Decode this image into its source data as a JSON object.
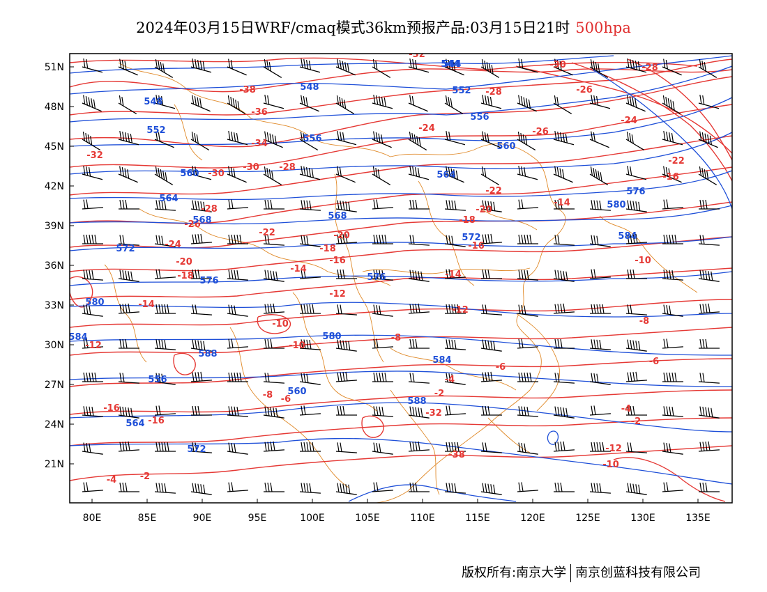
{
  "title": {
    "main": "2024年03月15日WRF/cmaq模式36km预报产品:03月15日21时",
    "level": "500hpa",
    "level_color": "#e53935"
  },
  "axes": {
    "lon_labels": [
      "80E",
      "85E",
      "90E",
      "95E",
      "100E",
      "105E",
      "110E",
      "115E",
      "120E",
      "125E",
      "130E",
      "135E"
    ],
    "lat_labels": [
      "51N",
      "48N",
      "45N",
      "42N",
      "39N",
      "36N",
      "33N",
      "30N",
      "27N",
      "24N",
      "21N"
    ]
  },
  "colors": {
    "temperature": "#e53935",
    "geopotential": "#1e4fd8",
    "border": "#e08a2a",
    "wind": "#000000"
  },
  "contour_labels": {
    "temperature": [
      "-32",
      "-38",
      "-36",
      "-34",
      "-32",
      "-30",
      "-28",
      "-28",
      "-26",
      "-24",
      "-22",
      "-20",
      "-18",
      "-16",
      "-14",
      "-12",
      "-10",
      "-8",
      "-6",
      "-4",
      "-2",
      "-30",
      "-28",
      "-26",
      "-24",
      "-22",
      "-20",
      "-18",
      "-16",
      "-14",
      "-12",
      "-10",
      "-8",
      "-6",
      "-4",
      "-2",
      "-32",
      "-38",
      "-30",
      "-28",
      "-26",
      "-24",
      "-22",
      "-16",
      "-14",
      "-10",
      "-8",
      "-6",
      "-4",
      "-2",
      "-12",
      "-10",
      "-16",
      "-16",
      "-14",
      "-12",
      "-20",
      "-18"
    ],
    "geopotential": [
      "544",
      "548",
      "552",
      "556",
      "560",
      "564",
      "568",
      "572",
      "576",
      "580",
      "584",
      "588",
      "544",
      "548",
      "552",
      "556",
      "560",
      "564",
      "568",
      "572",
      "576",
      "580",
      "584",
      "588",
      "556",
      "560",
      "564",
      "572",
      "576",
      "580",
      "584"
    ]
  },
  "wind_label": "wind barbs",
  "footer": {
    "copyright": "版权所有:南京大学",
    "company": "南京创蓝科技有限公司"
  }
}
